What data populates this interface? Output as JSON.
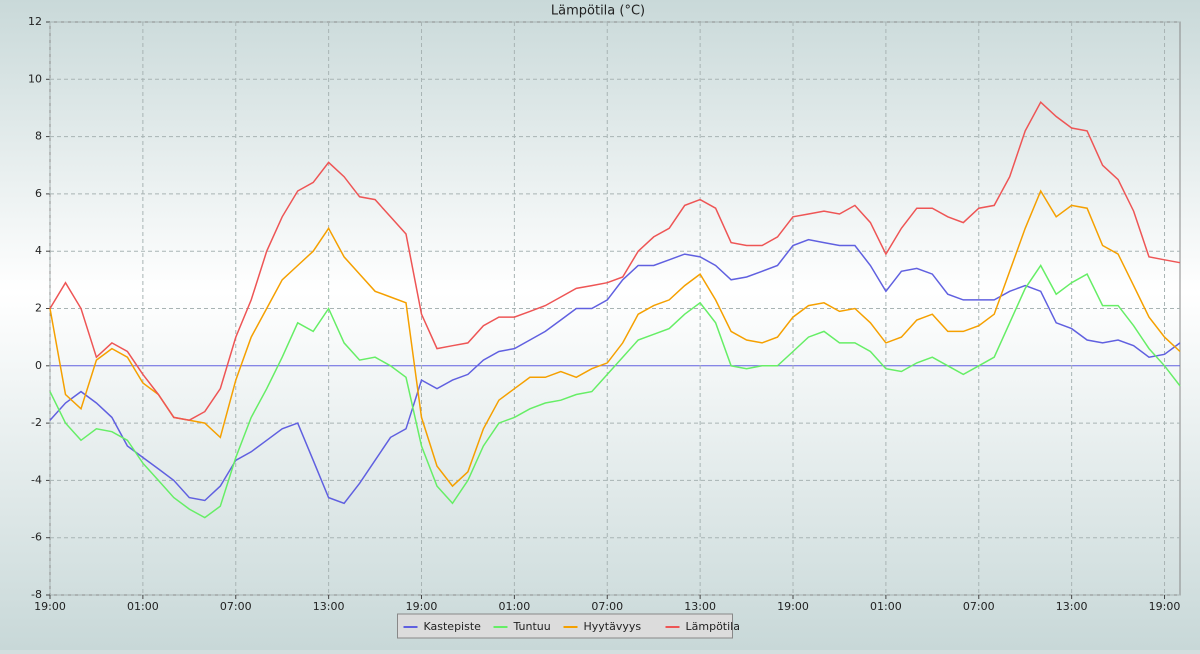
{
  "chart_data": {
    "type": "line",
    "title": "Lämpötila (°C)",
    "x": [
      0,
      1,
      2,
      3,
      4,
      5,
      6,
      7,
      8,
      9,
      10,
      11,
      12,
      13,
      14,
      15,
      16,
      17,
      18,
      19,
      20,
      21,
      22,
      23,
      24,
      25,
      26,
      27,
      28,
      29,
      30,
      31,
      32,
      33,
      34,
      35,
      36,
      37,
      38,
      39,
      40,
      41,
      42,
      43,
      44,
      45,
      46,
      47,
      48,
      49,
      50,
      51,
      52,
      53,
      54,
      55,
      56,
      57,
      58,
      59,
      60,
      61,
      62,
      63,
      64,
      65,
      66,
      67,
      68,
      69,
      70,
      71,
      72,
      73
    ],
    "series": [
      {
        "name": "Kastepiste",
        "color": "#6060e0",
        "values": [
          -1.9,
          -1.3,
          -0.9,
          -1.3,
          -1.8,
          -2.8,
          -3.2,
          -3.6,
          -4.0,
          -4.6,
          -4.7,
          -4.2,
          -3.3,
          -3.0,
          -2.6,
          -2.2,
          -2.0,
          -3.3,
          -4.6,
          -4.8,
          -4.1,
          -3.3,
          -2.5,
          -2.2,
          -0.5,
          -0.8,
          -0.5,
          -0.3,
          0.2,
          0.5,
          0.6,
          0.9,
          1.2,
          1.6,
          2.0,
          2.0,
          2.3,
          3.0,
          3.5,
          3.5,
          3.7,
          3.9,
          3.8,
          3.5,
          3.0,
          3.1,
          3.3,
          3.5,
          4.2,
          4.4,
          4.3,
          4.2,
          4.2,
          3.5,
          2.6,
          3.3,
          3.4,
          3.2,
          2.5,
          2.3,
          2.3,
          2.3,
          2.6,
          2.8,
          2.6,
          1.5,
          1.3,
          0.9,
          0.8,
          0.9,
          0.7,
          0.3,
          0.4,
          0.8
        ]
      },
      {
        "name": "Tuntuu",
        "color": "#66ee66",
        "values": [
          -0.9,
          -2.0,
          -2.6,
          -2.2,
          -2.3,
          -2.6,
          -3.4,
          -4.0,
          -4.6,
          -5.0,
          -5.3,
          -4.9,
          -3.2,
          -1.8,
          -0.8,
          0.3,
          1.5,
          1.2,
          2.0,
          0.8,
          0.2,
          0.3,
          0.0,
          -0.4,
          -2.8,
          -4.2,
          -4.8,
          -4.0,
          -2.8,
          -2.0,
          -1.8,
          -1.5,
          -1.3,
          -1.2,
          -1.0,
          -0.9,
          -0.3,
          0.3,
          0.9,
          1.1,
          1.3,
          1.8,
          2.2,
          1.5,
          0.0,
          -0.1,
          0.0,
          0.0,
          0.5,
          1.0,
          1.2,
          0.8,
          0.8,
          0.5,
          -0.1,
          -0.2,
          0.1,
          0.3,
          0.0,
          -0.3,
          0.0,
          0.3,
          1.5,
          2.7,
          3.5,
          2.5,
          2.9,
          3.2,
          2.1,
          2.1,
          1.4,
          0.6,
          0.0,
          -0.7
        ]
      },
      {
        "name": "Hyytävyys",
        "color": "#f5a000",
        "values": [
          2.0,
          -1.0,
          -1.5,
          0.2,
          0.6,
          0.3,
          -0.6,
          -1.0,
          -1.8,
          -1.9,
          -2.0,
          -2.5,
          -0.5,
          1.0,
          2.0,
          3.0,
          3.5,
          4.0,
          4.8,
          3.8,
          3.2,
          2.6,
          2.4,
          2.2,
          -1.8,
          -3.5,
          -4.2,
          -3.7,
          -2.2,
          -1.2,
          -0.8,
          -0.4,
          -0.4,
          -0.2,
          -0.4,
          -0.1,
          0.1,
          0.8,
          1.8,
          2.1,
          2.3,
          2.8,
          3.2,
          2.3,
          1.2,
          0.9,
          0.8,
          1.0,
          1.7,
          2.1,
          2.2,
          1.9,
          2.0,
          1.5,
          0.8,
          1.0,
          1.6,
          1.8,
          1.2,
          1.2,
          1.4,
          1.8,
          3.3,
          4.8,
          6.1,
          5.2,
          5.6,
          5.5,
          4.2,
          3.9,
          2.8,
          1.7,
          1.0,
          0.5
        ]
      },
      {
        "name": "Lämpötila",
        "color": "#ee5555",
        "values": [
          2.0,
          2.9,
          2.0,
          0.3,
          0.8,
          0.5,
          -0.3,
          -1.0,
          -1.8,
          -1.9,
          -1.6,
          -0.8,
          1.0,
          2.3,
          4.0,
          5.2,
          6.1,
          6.4,
          7.1,
          6.6,
          5.9,
          5.8,
          5.2,
          4.6,
          1.8,
          0.6,
          0.7,
          0.8,
          1.4,
          1.7,
          1.7,
          1.9,
          2.1,
          2.4,
          2.7,
          2.8,
          2.9,
          3.1,
          4.0,
          4.5,
          4.8,
          5.6,
          5.8,
          5.5,
          4.3,
          4.2,
          4.2,
          4.5,
          5.2,
          5.3,
          5.4,
          5.3,
          5.6,
          5.0,
          3.9,
          4.8,
          5.5,
          5.5,
          5.2,
          5.0,
          5.5,
          5.6,
          6.6,
          8.2,
          9.2,
          8.7,
          8.3,
          8.2,
          7.0,
          6.5,
          5.4,
          3.8,
          3.7,
          3.6
        ]
      }
    ],
    "xlim": [
      0,
      73
    ],
    "xticks": [
      {
        "value": 0,
        "label": "19:00"
      },
      {
        "value": 6,
        "label": "01:00"
      },
      {
        "value": 12,
        "label": "07:00"
      },
      {
        "value": 18,
        "label": "13:00"
      },
      {
        "value": 24,
        "label": "19:00"
      },
      {
        "value": 30,
        "label": "01:00"
      },
      {
        "value": 36,
        "label": "07:00"
      },
      {
        "value": 42,
        "label": "13:00"
      },
      {
        "value": 48,
        "label": "19:00"
      },
      {
        "value": 54,
        "label": "01:00"
      },
      {
        "value": 60,
        "label": "07:00"
      },
      {
        "value": 66,
        "label": "13:00"
      },
      {
        "value": 72,
        "label": "19:00"
      }
    ],
    "ylim": [
      -8,
      12
    ],
    "yticks": [
      -8,
      -6,
      -4,
      -2,
      0,
      2,
      4,
      6,
      8,
      10,
      12
    ],
    "grid": true,
    "legend": "bottom"
  }
}
